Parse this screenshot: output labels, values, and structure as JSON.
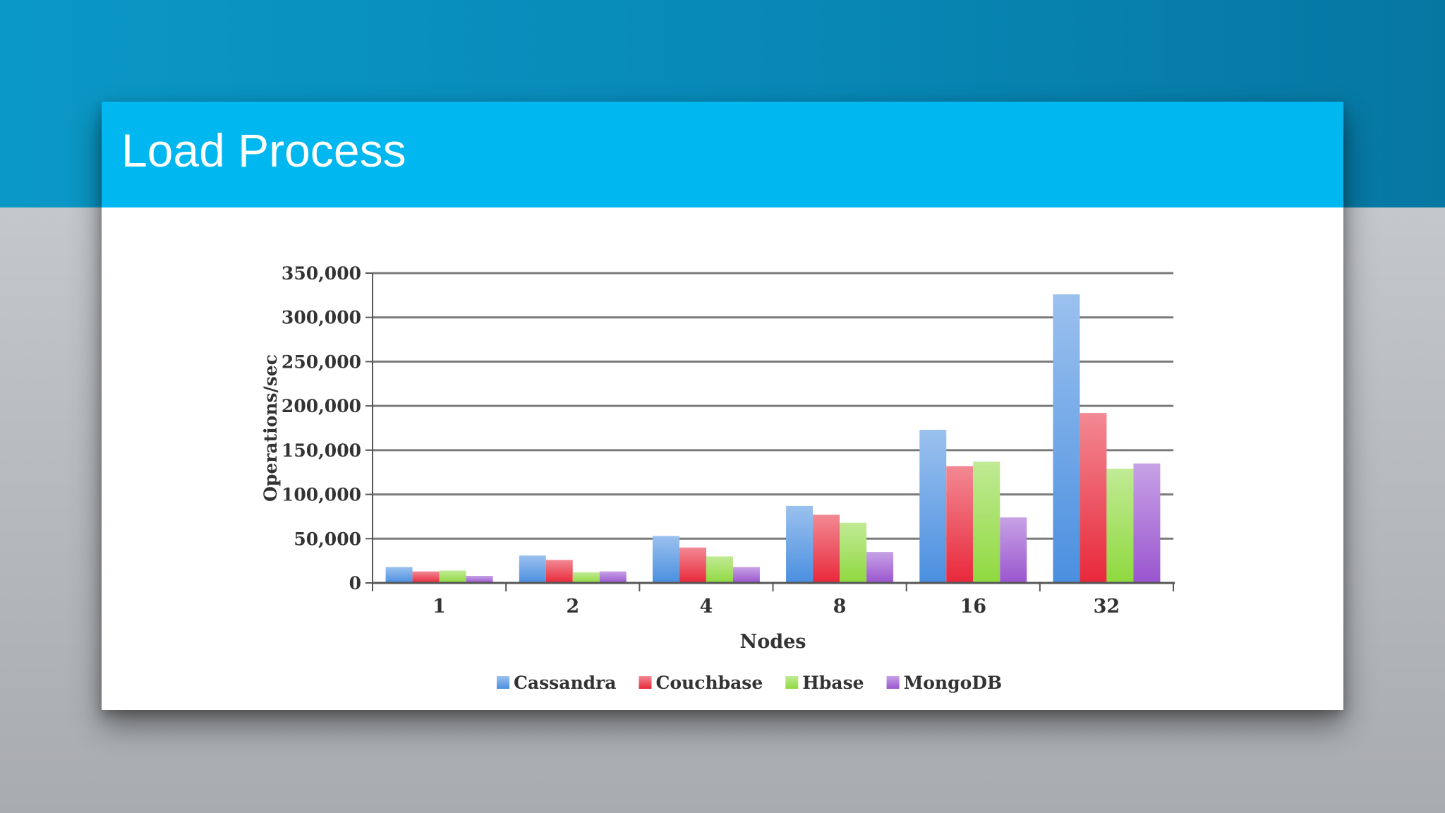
{
  "slide": {
    "title": "Load Process"
  },
  "chart_data": {
    "type": "bar",
    "title": "",
    "xlabel": "Nodes",
    "ylabel": "Operations/sec",
    "ylim": [
      0,
      350000
    ],
    "yticks": [
      "0",
      "50,000",
      "100,000",
      "150,000",
      "200,000",
      "250,000",
      "300,000",
      "350,000"
    ],
    "grid": true,
    "legend": "bottom",
    "categories": [
      "1",
      "2",
      "4",
      "8",
      "16",
      "32"
    ],
    "series": [
      {
        "name": "Cassandra",
        "color": "#4a8fe0",
        "values": [
          18000,
          31000,
          53000,
          87000,
          173000,
          326000
        ]
      },
      {
        "name": "Couchbase",
        "color": "#e8283a",
        "values": [
          13000,
          26000,
          40000,
          77000,
          132000,
          192000
        ]
      },
      {
        "name": "Hbase",
        "color": "#8fd93f",
        "values": [
          14000,
          12000,
          30000,
          68000,
          137000,
          129000
        ]
      },
      {
        "name": "MongoDB",
        "color": "#9a55cf",
        "values": [
          8000,
          13000,
          18000,
          35000,
          74000,
          135000
        ]
      }
    ]
  }
}
